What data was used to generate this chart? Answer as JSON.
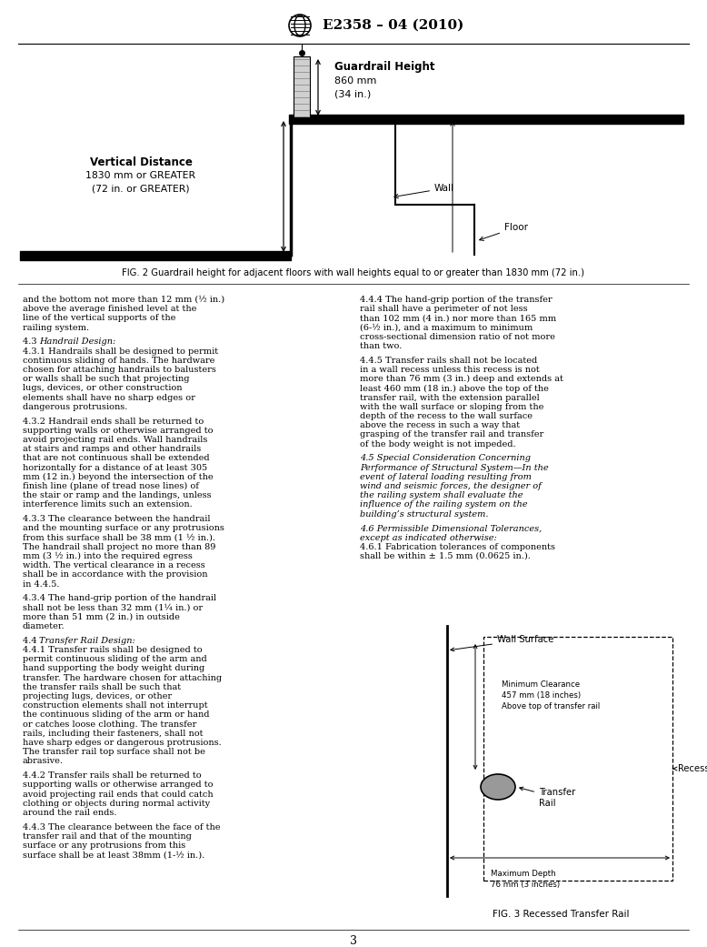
{
  "page_width": 7.78,
  "page_height": 10.41,
  "bg_color": "#ffffff",
  "header_text": "E2358 – 04 (2010)",
  "fig2_caption": "FIG. 2 Guardrail height for adjacent floors with wall heights equal to or greater than 1830 mm (72 in.)",
  "fig3_caption": "FIG. 3 Recessed Transfer Rail",
  "page_number": "3",
  "left_col_text": [
    {
      "text": "and the bottom not more than 12 mm (½ in.) above the average finished level at the line of the vertical supports of the railing system.",
      "style": "normal"
    },
    {
      "text": "",
      "style": "normal"
    },
    {
      "text": "4.3  Handrail Design:",
      "style": "italic_section"
    },
    {
      "text": "4.3.1  Handrails shall be designed to permit continuous sliding of hands. The hardware chosen for attaching handrails to balusters or walls shall be such that projecting lugs, devices, or other construction elements shall have no sharp edges or dangerous protrusions.",
      "style": "normal"
    },
    {
      "text": "",
      "style": "normal"
    },
    {
      "text": "4.3.2  Handrail ends shall be returned to supporting walls or otherwise arranged to avoid projecting rail ends. Wall handrails at stairs and ramps and other handrails that are not continuous shall be extended horizontally for a distance of at least 305 mm (12 in.) beyond the intersection of the finish line (plane of tread nose lines) of the stair or ramp and the landings, unless interference limits such an extension.",
      "style": "normal"
    },
    {
      "text": "",
      "style": "normal"
    },
    {
      "text": "4.3.3  The clearance between the handrail and the mounting surface or any protrusions from this surface shall be 38 mm (1 ½ in.). The handrail shall project no more than 89 mm (3 ½ in.) into the required egress width. The vertical clearance in a recess shall be in accordance with the provision in 4.4.5.",
      "style": "normal_ref"
    },
    {
      "text": "",
      "style": "normal"
    },
    {
      "text": "4.3.4  The hand-grip portion of the handrail shall not be less than 32 mm (1¼ in.) or more than 51 mm (2 in.) in outside diameter.",
      "style": "normal"
    },
    {
      "text": "",
      "style": "normal"
    },
    {
      "text": "4.4  Transfer Rail Design:",
      "style": "italic_section"
    },
    {
      "text": "4.4.1  Transfer rails shall be designed to permit continuous sliding of the arm and hand supporting the body weight during transfer. The hardware chosen for attaching the transfer rails shall be such that projecting lugs, devices, or other construction elements shall not interrupt the continuous sliding of the arm or hand or catches loose clothing. The transfer rails, including their fasteners, shall not have sharp edges or dangerous protrusions. The transfer rail top surface shall not be abrasive.",
      "style": "normal"
    },
    {
      "text": "",
      "style": "normal"
    },
    {
      "text": "4.4.2  Transfer rails shall be returned to supporting walls or otherwise arranged to avoid projecting rail ends that could catch clothing or objects during normal activity around the rail ends.",
      "style": "normal"
    },
    {
      "text": "",
      "style": "normal"
    },
    {
      "text": "4.4.3  The clearance between the face of the transfer rail and that of the mounting surface or any protrusions from this surface shall be at least 38mm (1-½ in.).",
      "style": "normal"
    }
  ],
  "right_col_text": [
    {
      "text": "4.4.4  The hand-grip portion of the transfer rail shall have a perimeter of not less than 102 mm (4 in.) nor more than 165 mm (6-½ in.), and a maximum to minimum cross-sectional dimension ratio of not more than two.",
      "style": "normal"
    },
    {
      "text": "",
      "style": "normal"
    },
    {
      "text": "4.4.5  Transfer rails shall not be located in a wall recess unless this recess is not more than 76 mm (3 in.) deep and extends at least 460 mm (18 in.) above the top of the transfer rail, with the extension parallel with the wall surface or sloping from the depth of the recess to the wall surface above the recess in such a way that grasping of the transfer rail and transfer of the body weight is not impeded.",
      "style": "normal"
    },
    {
      "text": "",
      "style": "normal"
    },
    {
      "text": "4.5  Special Consideration Concerning Performance of Structural System—In the event of lateral loading resulting from wind and seismic forces, the designer of the railing system shall evaluate the influence of the railing system on the building’s structural system.",
      "style": "italic_lead"
    },
    {
      "text": "",
      "style": "normal"
    },
    {
      "text": "4.6  Permissible Dimensional Tolerances, except as indicated otherwise:",
      "style": "italic_lead"
    },
    {
      "text": "4.6.1  Fabrication tolerances of components shall be within ± 1.5 mm (0.0625 in.).",
      "style": "normal"
    }
  ]
}
